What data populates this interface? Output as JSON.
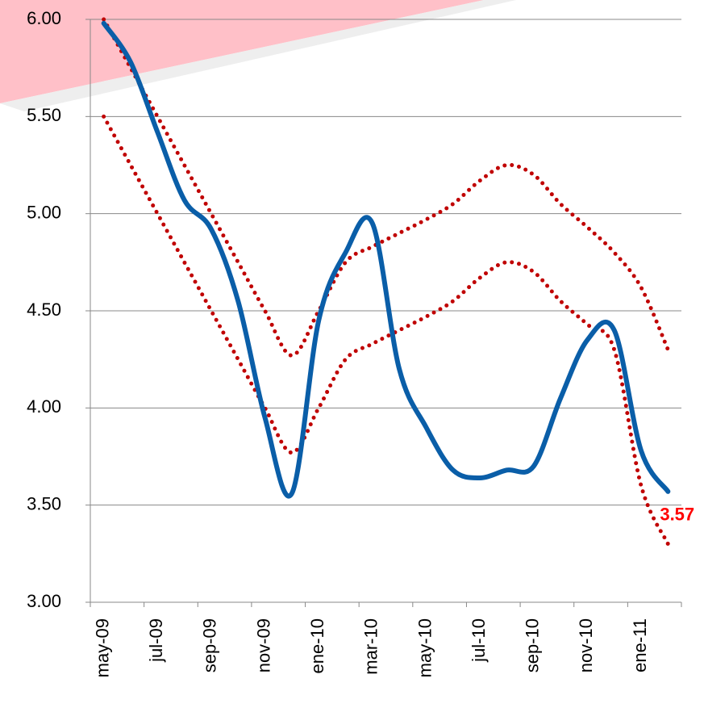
{
  "chart_data": {
    "type": "line",
    "categories": [
      "may-09",
      null,
      "jul-09",
      null,
      "sep-09",
      null,
      "nov-09",
      null,
      "ene-10",
      null,
      "mar-10",
      null,
      "may-10",
      null,
      "jul-10",
      null,
      "sep-10",
      null,
      "nov-10",
      null,
      "ene-11",
      null
    ],
    "series": [
      {
        "color": "#0a5ea8",
        "style": "solid",
        "values": [
          5.98,
          5.78,
          5.42,
          5.07,
          4.92,
          4.55,
          3.95,
          3.56,
          4.45,
          4.8,
          4.95,
          4.2,
          3.9,
          3.68,
          3.64,
          3.68,
          3.7,
          4.05,
          4.35,
          4.4,
          3.78,
          3.57
        ]
      },
      {
        "color": "#c00000",
        "style": "dotted",
        "values": [
          6.0,
          5.75,
          5.5,
          5.25,
          5.0,
          4.75,
          4.5,
          4.27,
          4.5,
          4.75,
          4.83,
          4.9,
          4.97,
          5.05,
          5.17,
          5.25,
          5.2,
          5.05,
          4.93,
          4.8,
          4.62,
          4.3
        ]
      },
      {
        "color": "#c00000",
        "style": "dotted",
        "values": [
          5.5,
          5.25,
          5.0,
          4.75,
          4.5,
          4.25,
          4.0,
          3.77,
          4.0,
          4.25,
          4.33,
          4.4,
          4.47,
          4.55,
          4.67,
          4.75,
          4.7,
          4.55,
          4.43,
          4.3,
          3.6,
          3.3
        ]
      }
    ],
    "ylim": [
      3,
      6
    ],
    "yticks": [
      {
        "value": 3,
        "label": "3.00"
      },
      {
        "value": 3.5,
        "label": "3.50"
      },
      {
        "value": 4,
        "label": "4.00"
      },
      {
        "value": 4.5,
        "label": "4.50"
      },
      {
        "value": 5,
        "label": "5.00"
      },
      {
        "value": 5.5,
        "label": "5.50"
      },
      {
        "value": 6,
        "label": "6.00"
      }
    ],
    "grid": true,
    "label_color": "#ff0000"
  }
}
